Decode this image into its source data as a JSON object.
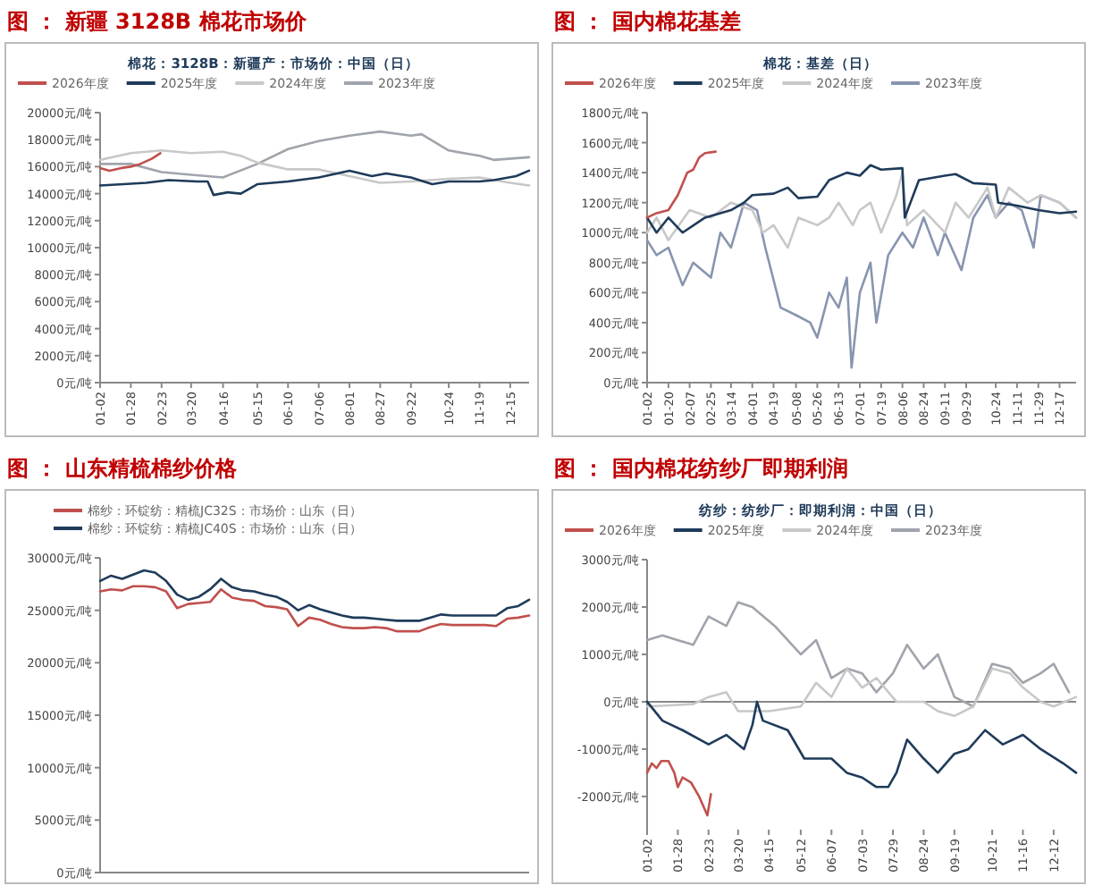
{
  "chart_data": [
    {
      "type": "line",
      "title": "图 ： 新疆 3128B 棉花市场价",
      "subtitle": "棉花：3128B：新疆产：市场价：中国（日）",
      "legend": "top",
      "xlim": [
        "--01-02",
        "--12-31"
      ],
      "xticks": [
        {
          "value": "--01-02",
          "label": "01-02"
        },
        {
          "value": "--01-28",
          "label": "01-28"
        },
        {
          "value": "--02-23",
          "label": "02-23"
        },
        {
          "value": "--03-20",
          "label": "03-20"
        },
        {
          "value": "--04-16",
          "label": "04-16"
        },
        {
          "value": "--05-15",
          "label": "05-15"
        },
        {
          "value": "--06-10",
          "label": "06-10"
        },
        {
          "value": "--07-06",
          "label": "07-06"
        },
        {
          "value": "--08-01",
          "label": "08-01"
        },
        {
          "value": "--08-27",
          "label": "08-27"
        },
        {
          "value": "--09-22",
          "label": "09-22"
        },
        {
          "value": "--10-24",
          "label": "10-24"
        },
        {
          "value": "--11-19",
          "label": "11-19"
        },
        {
          "value": "--12-15",
          "label": "12-15"
        }
      ],
      "ylim": [
        0,
        20000
      ],
      "yticks": [
        {
          "value": 0,
          "label": "0元/吨"
        },
        {
          "value": 2000,
          "label": "2000元/吨"
        },
        {
          "value": 4000,
          "label": "4000元/吨"
        },
        {
          "value": 6000,
          "label": "6000元/吨"
        },
        {
          "value": 8000,
          "label": "8000元/吨"
        },
        {
          "value": 10000,
          "label": "10000元/吨"
        },
        {
          "value": 12000,
          "label": "12000元/吨"
        },
        {
          "value": 14000,
          "label": "14000元/吨"
        },
        {
          "value": 16000,
          "label": "16000元/吨"
        },
        {
          "value": 18000,
          "label": "18000元/吨"
        },
        {
          "value": 20000,
          "label": "20000元/吨"
        }
      ],
      "series": [
        {
          "name": "2026年度",
          "color": "#c0504d",
          "x": [
            "--01-02",
            "--01-10",
            "--01-20",
            "--01-28",
            "--02-05",
            "--02-15",
            "--02-22"
          ],
          "values": [
            15900,
            15700,
            15900,
            16000,
            16200,
            16600,
            17000
          ]
        },
        {
          "name": "2025年度",
          "color": "#1f3b5a",
          "x": [
            "--01-02",
            "--02-10",
            "--03-01",
            "--03-25",
            "--04-03",
            "--04-08",
            "--04-20",
            "--05-01",
            "--05-15",
            "--06-10",
            "--07-06",
            "--08-01",
            "--08-20",
            "--09-01",
            "--09-22",
            "--10-10",
            "--10-24",
            "--11-19",
            "--12-01",
            "--12-20",
            "--12-31"
          ],
          "values": [
            14600,
            14800,
            15000,
            14900,
            14900,
            13900,
            14100,
            14000,
            14700,
            14900,
            15200,
            15700,
            15300,
            15500,
            15200,
            14700,
            14900,
            14900,
            15000,
            15300,
            15700
          ]
        },
        {
          "name": "2024年度",
          "color": "#c8c8c8",
          "x": [
            "--01-02",
            "--01-28",
            "--02-23",
            "--03-20",
            "--04-16",
            "--05-01",
            "--05-15",
            "--06-10",
            "--07-06",
            "--08-01",
            "--08-27",
            "--09-22",
            "--10-24",
            "--11-19",
            "--12-15",
            "--12-31"
          ],
          "values": [
            16500,
            17000,
            17200,
            17000,
            17100,
            16800,
            16300,
            15800,
            15800,
            15300,
            14800,
            14900,
            15100,
            15200,
            14800,
            14600
          ]
        },
        {
          "name": "2023年度",
          "color": "#a0a4ac",
          "x": [
            "--01-02",
            "--01-28",
            "--02-23",
            "--03-20",
            "--04-16",
            "--05-15",
            "--06-10",
            "--07-06",
            "--08-01",
            "--08-27",
            "--09-22",
            "--10-01",
            "--10-24",
            "--11-19",
            "--12-01",
            "--12-31"
          ],
          "values": [
            16200,
            16200,
            15600,
            15400,
            15200,
            16200,
            17300,
            17900,
            18300,
            18600,
            18300,
            18400,
            17200,
            16800,
            16500,
            16700
          ]
        }
      ]
    },
    {
      "type": "line",
      "title": "图 ： 国内棉花基差",
      "subtitle": "棉花：基差（日）",
      "legend": "top",
      "xlim": [
        "--01-02",
        "--12-31"
      ],
      "xticks": [
        {
          "value": "--01-02",
          "label": "01-02"
        },
        {
          "value": "--01-20",
          "label": "01-20"
        },
        {
          "value": "--02-07",
          "label": "02-07"
        },
        {
          "value": "--02-25",
          "label": "02-25"
        },
        {
          "value": "--03-14",
          "label": "03-14"
        },
        {
          "value": "--04-01",
          "label": "04-01"
        },
        {
          "value": "--04-19",
          "label": "04-19"
        },
        {
          "value": "--05-08",
          "label": "05-08"
        },
        {
          "value": "--05-26",
          "label": "05-26"
        },
        {
          "value": "--06-13",
          "label": "06-13"
        },
        {
          "value": "--07-01",
          "label": "07-01"
        },
        {
          "value": "--07-19",
          "label": "07-19"
        },
        {
          "value": "--08-06",
          "label": "08-06"
        },
        {
          "value": "--08-24",
          "label": "08-24"
        },
        {
          "value": "--09-11",
          "label": "09-11"
        },
        {
          "value": "--09-29",
          "label": "09-29"
        },
        {
          "value": "--10-24",
          "label": "10-24"
        },
        {
          "value": "--11-11",
          "label": "11-11"
        },
        {
          "value": "--11-29",
          "label": "11-29"
        },
        {
          "value": "--12-17",
          "label": "12-17"
        }
      ],
      "ylim": [
        0,
        1800
      ],
      "yticks": [
        {
          "value": 0,
          "label": "0元/吨"
        },
        {
          "value": 200,
          "label": "200元/吨"
        },
        {
          "value": 400,
          "label": "400元/吨"
        },
        {
          "value": 600,
          "label": "600元/吨"
        },
        {
          "value": 800,
          "label": "800元/吨"
        },
        {
          "value": 1000,
          "label": "1000元/吨"
        },
        {
          "value": 1200,
          "label": "1200元/吨"
        },
        {
          "value": 1400,
          "label": "1400元/吨"
        },
        {
          "value": 1600,
          "label": "1600元/吨"
        },
        {
          "value": 1800,
          "label": "1800元/吨"
        }
      ],
      "series": [
        {
          "name": "2026年度",
          "color": "#c0504d",
          "x": [
            "--01-02",
            "--01-10",
            "--01-20",
            "--01-28",
            "--02-05",
            "--02-10",
            "--02-15",
            "--02-20",
            "--03-01"
          ],
          "values": [
            1100,
            1130,
            1150,
            1250,
            1400,
            1420,
            1500,
            1530,
            1540
          ]
        },
        {
          "name": "2025年度",
          "color": "#1f3b5a",
          "x": [
            "--01-02",
            "--01-10",
            "--01-20",
            "--02-01",
            "--02-20",
            "--03-14",
            "--03-25",
            "--04-01",
            "--04-19",
            "--05-01",
            "--05-10",
            "--05-26",
            "--06-05",
            "--06-20",
            "--07-01",
            "--07-10",
            "--07-19",
            "--08-06",
            "--08-08",
            "--08-20",
            "--09-11",
            "--09-20",
            "--10-05",
            "--10-24",
            "--10-26",
            "--11-11",
            "--11-29",
            "--12-17",
            "--12-31"
          ],
          "values": [
            1100,
            1000,
            1100,
            1000,
            1100,
            1150,
            1200,
            1250,
            1260,
            1300,
            1230,
            1240,
            1350,
            1400,
            1380,
            1450,
            1420,
            1430,
            1100,
            1350,
            1380,
            1390,
            1330,
            1320,
            1200,
            1180,
            1150,
            1130,
            1140
          ]
        },
        {
          "name": "2024年度",
          "color": "#c8c8c8",
          "x": [
            "--01-02",
            "--01-10",
            "--01-20",
            "--02-07",
            "--02-25",
            "--03-14",
            "--04-01",
            "--04-10",
            "--04-19",
            "--05-01",
            "--05-10",
            "--05-26",
            "--06-05",
            "--06-13",
            "--06-25",
            "--07-01",
            "--07-10",
            "--07-19",
            "--08-01",
            "--08-06",
            "--08-10",
            "--08-24",
            "--09-11",
            "--09-20",
            "--10-01",
            "--10-17",
            "--10-24",
            "--11-04",
            "--11-20",
            "--12-01",
            "--12-17",
            "--12-31"
          ],
          "values": [
            1000,
            1100,
            950,
            1150,
            1100,
            1200,
            1150,
            1000,
            1050,
            900,
            1100,
            1050,
            1100,
            1200,
            1050,
            1150,
            1200,
            1000,
            1250,
            1400,
            1050,
            1150,
            1000,
            1200,
            1100,
            1300,
            1100,
            1300,
            1200,
            1250,
            1200,
            1100
          ]
        },
        {
          "name": "2023年度",
          "color": "#8895b0",
          "x": [
            "--01-02",
            "--01-10",
            "--01-20",
            "--02-01",
            "--02-10",
            "--02-25",
            "--03-05",
            "--03-14",
            "--03-25",
            "--04-05",
            "--04-12",
            "--04-25",
            "--05-08",
            "--05-20",
            "--05-26",
            "--06-05",
            "--06-13",
            "--06-20",
            "--06-24",
            "--07-01",
            "--07-10",
            "--07-15",
            "--07-25",
            "--08-06",
            "--08-15",
            "--08-24",
            "--09-05",
            "--09-11",
            "--09-25",
            "--10-05",
            "--10-17",
            "--10-24",
            "--11-04",
            "--11-15",
            "--11-25",
            "--12-01",
            "--12-17",
            "--12-31"
          ],
          "values": [
            950,
            850,
            900,
            650,
            800,
            700,
            1000,
            900,
            1200,
            1150,
            900,
            500,
            450,
            400,
            300,
            600,
            500,
            700,
            100,
            600,
            800,
            400,
            850,
            1000,
            900,
            1100,
            850,
            1000,
            750,
            1100,
            1250,
            1100,
            1200,
            1150,
            900,
            1250,
            1200,
            1100
          ]
        }
      ]
    },
    {
      "type": "line",
      "title": "图 ： 山东精梳棉纱价格",
      "legend": "top",
      "categories": [
        null,
        null,
        null,
        null,
        null,
        null,
        null,
        null,
        null,
        null,
        null,
        null,
        null,
        null,
        null,
        null,
        null,
        null,
        null,
        null,
        null,
        null,
        null,
        null,
        null,
        null,
        null,
        null,
        null,
        null,
        null,
        null,
        null,
        null,
        null,
        null,
        null,
        null,
        null,
        null
      ],
      "ylim": [
        0,
        30000
      ],
      "yticks": [
        {
          "value": 0,
          "label": "0元/吨"
        },
        {
          "value": 5000,
          "label": "5000元/吨"
        },
        {
          "value": 10000,
          "label": "10000元/吨"
        },
        {
          "value": 15000,
          "label": "15000元/吨"
        },
        {
          "value": 20000,
          "label": "20000元/吨"
        },
        {
          "value": 25000,
          "label": "25000元/吨"
        },
        {
          "value": 30000,
          "label": "30000元/吨"
        }
      ],
      "series": [
        {
          "name": "棉纱：环锭纺：精梳JC32S：市场价：山东（日）",
          "color": "#c0504d",
          "values": [
            26800,
            27000,
            26900,
            27300,
            27300,
            27200,
            26800,
            25200,
            25600,
            25700,
            25800,
            27000,
            26200,
            26000,
            25900,
            25400,
            25300,
            25100,
            23500,
            24300,
            24100,
            23700,
            23400,
            23300,
            23300,
            23400,
            23300,
            23000,
            23000,
            23000,
            23400,
            23700,
            23600,
            23600,
            23600,
            23600,
            23500,
            24200,
            24300,
            24500
          ]
        },
        {
          "name": "棉纱：环锭纺：精梳JC40S：市场价：山东（日）",
          "color": "#1f3b5a",
          "values": [
            27800,
            28300,
            28000,
            28400,
            28800,
            28600,
            27800,
            26500,
            26000,
            26300,
            27000,
            28000,
            27200,
            26900,
            26800,
            26500,
            26300,
            25800,
            25000,
            25500,
            25100,
            24800,
            24500,
            24300,
            24300,
            24200,
            24100,
            24000,
            24000,
            24000,
            24300,
            24600,
            24500,
            24500,
            24500,
            24500,
            24500,
            25200,
            25400,
            26000
          ]
        }
      ]
    },
    {
      "type": "line",
      "title": "图 ： 国内棉花纺纱厂即期利润",
      "subtitle": "纺纱：纺纱厂：即期利润：中国（日）",
      "legend": "top",
      "xlim": [
        "--01-02",
        "--12-31"
      ],
      "xticks": [
        {
          "value": "--01-02",
          "label": "01-02"
        },
        {
          "value": "--01-28",
          "label": "01-28"
        },
        {
          "value": "--02-23",
          "label": "02-23"
        },
        {
          "value": "--03-20",
          "label": "03-20"
        },
        {
          "value": "--04-15",
          "label": "04-15"
        },
        {
          "value": "--05-12",
          "label": "05-12"
        },
        {
          "value": "--06-07",
          "label": "06-07"
        },
        {
          "value": "--07-03",
          "label": "07-03"
        },
        {
          "value": "--07-29",
          "label": "07-29"
        },
        {
          "value": "--08-24",
          "label": "08-24"
        },
        {
          "value": "--09-19",
          "label": "09-19"
        },
        {
          "value": "--10-21",
          "label": "10-21"
        },
        {
          "value": "--11-16",
          "label": "11-16"
        },
        {
          "value": "--12-12",
          "label": "12-12"
        }
      ],
      "ylim": [
        -2700,
        3000
      ],
      "yticks": [
        {
          "value": -2000,
          "label": "-2000元/吨"
        },
        {
          "value": -1000,
          "label": "-1000元/吨"
        },
        {
          "value": 0,
          "label": "0元/吨"
        },
        {
          "value": 1000,
          "label": "1000元/吨"
        },
        {
          "value": 2000,
          "label": "2000元/吨"
        },
        {
          "value": 3000,
          "label": "3000元/吨"
        }
      ],
      "series": [
        {
          "name": "2026年度",
          "color": "#c0504d",
          "x": [
            "--01-02",
            "--01-06",
            "--01-10",
            "--01-14",
            "--01-20",
            "--01-25",
            "--01-28",
            "--02-01",
            "--02-08",
            "--02-15",
            "--02-22",
            "--02-25"
          ],
          "values": [
            -1500,
            -1300,
            -1400,
            -1250,
            -1250,
            -1500,
            -1800,
            -1600,
            -1700,
            -2000,
            -2400,
            -1950
          ]
        },
        {
          "name": "2025年度",
          "color": "#1f3b5a",
          "x": [
            "--01-02",
            "--01-15",
            "--02-01",
            "--02-23",
            "--03-10",
            "--03-25",
            "--04-01",
            "--04-05",
            "--04-10",
            "--05-01",
            "--05-15",
            "--06-07",
            "--06-20",
            "--07-03",
            "--07-15",
            "--07-25",
            "--08-01",
            "--08-10",
            "--08-24",
            "--09-05",
            "--09-19",
            "--10-01",
            "--10-15",
            "--10-30",
            "--11-16",
            "--12-01",
            "--12-20",
            "--12-31"
          ],
          "values": [
            0,
            -400,
            -600,
            -900,
            -700,
            -1000,
            -500,
            0,
            -400,
            -600,
            -1200,
            -1200,
            -1500,
            -1600,
            -1800,
            -1800,
            -1500,
            -800,
            -1200,
            -1500,
            -1100,
            -1000,
            -600,
            -900,
            -700,
            -1000,
            -1300,
            -1500
          ]
        },
        {
          "name": "2024年度",
          "color": "#c8c8c8",
          "x": [
            "--01-02",
            "--02-10",
            "--02-23",
            "--03-10",
            "--03-20",
            "--04-01",
            "--04-15",
            "--05-12",
            "--05-25",
            "--06-07",
            "--06-20",
            "--07-03",
            "--07-15",
            "--08-01",
            "--08-24",
            "--09-05",
            "--09-19",
            "--10-05",
            "--10-21",
            "--11-05",
            "--11-16",
            "--12-01",
            "--12-12",
            "--12-31"
          ],
          "values": [
            -100,
            -50,
            100,
            200,
            -200,
            -200,
            -200,
            -100,
            400,
            100,
            700,
            300,
            500,
            0,
            0,
            -200,
            -300,
            -100,
            700,
            600,
            300,
            0,
            -100,
            100
          ]
        },
        {
          "name": "2023年度",
          "color": "#a0a4ac",
          "x": [
            "--01-02",
            "--01-15",
            "--02-10",
            "--02-23",
            "--03-10",
            "--03-20",
            "--04-01",
            "--04-20",
            "--05-12",
            "--05-25",
            "--06-07",
            "--06-20",
            "--07-03",
            "--07-15",
            "--07-29",
            "--08-10",
            "--08-24",
            "--09-05",
            "--09-19",
            "--10-05",
            "--10-21",
            "--11-05",
            "--11-16",
            "--12-01",
            "--12-12",
            "--12-25"
          ],
          "values": [
            1300,
            1400,
            1200,
            1800,
            1600,
            2100,
            2000,
            1600,
            1000,
            1300,
            500,
            700,
            600,
            200,
            600,
            1200,
            700,
            1000,
            100,
            -100,
            800,
            700,
            400,
            600,
            800,
            200
          ]
        }
      ]
    }
  ]
}
